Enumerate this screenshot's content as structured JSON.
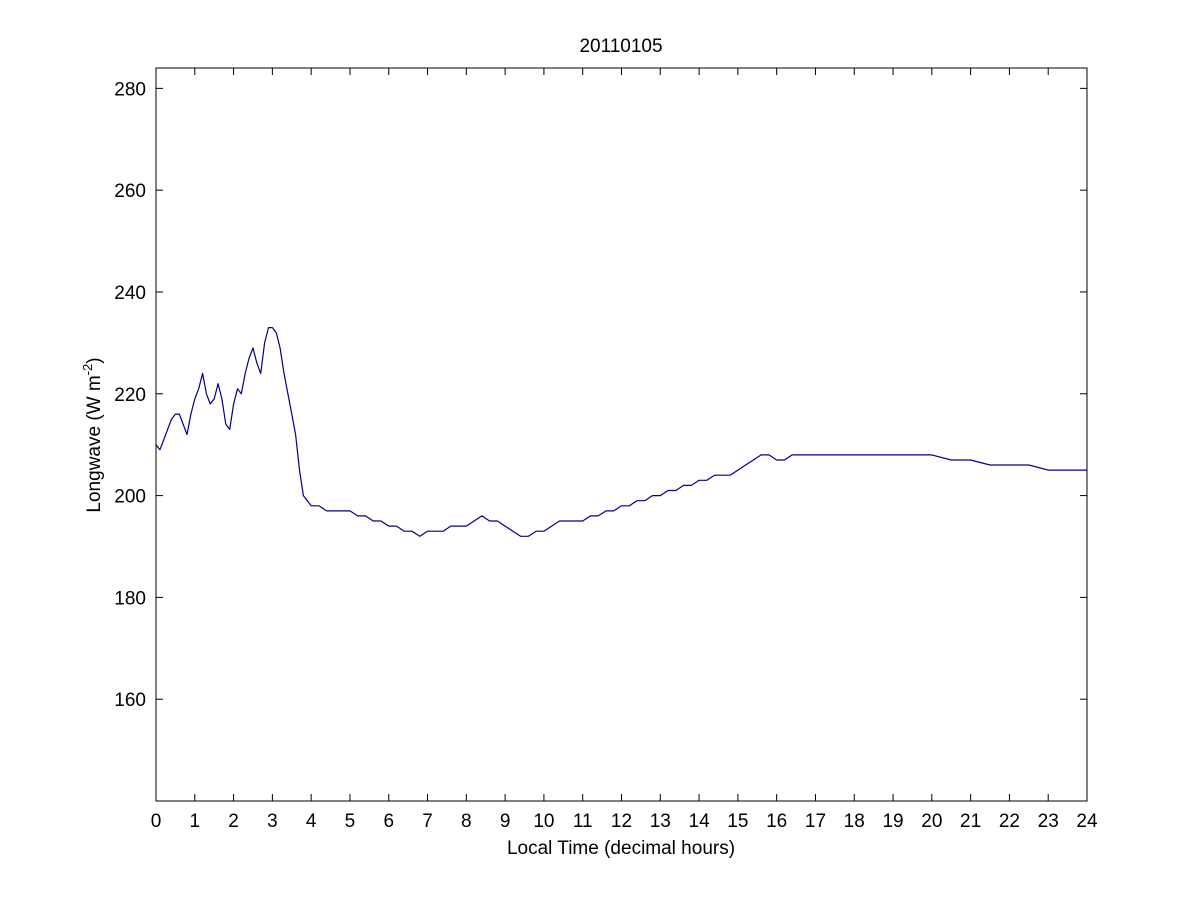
{
  "chart_data": {
    "type": "line",
    "title": "20110105",
    "xlabel": "Local Time (decimal hours)",
    "ylabel_main": "Longwave (W m",
    "ylabel_exponent": "-2",
    "ylabel_close": ")",
    "xlim": [
      0,
      24
    ],
    "ylim": [
      140,
      284
    ],
    "xticks": [
      0,
      1,
      2,
      3,
      4,
      5,
      6,
      7,
      8,
      9,
      10,
      11,
      12,
      13,
      14,
      15,
      16,
      17,
      18,
      19,
      20,
      21,
      22,
      23,
      24
    ],
    "yticks": [
      160,
      180,
      200,
      220,
      240,
      260,
      280
    ],
    "grid": false,
    "line_color": "#00008B",
    "series": [
      {
        "x": [
          0.0,
          0.1,
          0.2,
          0.3,
          0.4,
          0.5,
          0.6,
          0.7,
          0.8,
          0.9,
          1.0,
          1.1,
          1.2,
          1.3,
          1.4,
          1.5,
          1.6,
          1.7,
          1.8,
          1.9,
          2.0,
          2.1,
          2.2,
          2.3,
          2.4,
          2.5,
          2.6,
          2.7,
          2.8,
          2.9,
          3.0,
          3.1,
          3.2,
          3.3,
          3.4,
          3.5,
          3.6,
          3.7,
          3.8,
          3.9,
          4.0,
          4.2,
          4.4,
          4.6,
          4.8,
          5.0,
          5.2,
          5.4,
          5.6,
          5.8,
          6.0,
          6.2,
          6.4,
          6.6,
          6.8,
          7.0,
          7.2,
          7.4,
          7.6,
          7.8,
          8.0,
          8.2,
          8.4,
          8.6,
          8.8,
          9.0,
          9.2,
          9.4,
          9.6,
          9.8,
          10.0,
          10.2,
          10.4,
          10.6,
          10.8,
          11.0,
          11.2,
          11.4,
          11.6,
          11.8,
          12.0,
          12.2,
          12.4,
          12.6,
          12.8,
          13.0,
          13.2,
          13.4,
          13.6,
          13.8,
          14.0,
          14.2,
          14.4,
          14.6,
          14.8,
          15.0,
          15.2,
          15.4,
          15.6,
          15.8,
          16.0,
          16.2,
          16.4,
          16.6,
          16.8,
          17.0,
          17.2,
          17.4,
          17.6,
          17.8,
          18.0,
          18.5,
          19.0,
          19.5,
          20.0,
          20.5,
          21.0,
          21.5,
          22.0,
          22.5,
          23.0,
          23.5,
          24.0
        ],
        "y": [
          210,
          209,
          211,
          213,
          215,
          216,
          216,
          214,
          212,
          216,
          219,
          221,
          224,
          220,
          218,
          219,
          222,
          219,
          214,
          213,
          218,
          221,
          220,
          224,
          227,
          229,
          226,
          224,
          230,
          233,
          233,
          232,
          229,
          224,
          220,
          216,
          212,
          205,
          200,
          199,
          198,
          198,
          197,
          197,
          197,
          197,
          196,
          196,
          195,
          195,
          194,
          194,
          193,
          193,
          192,
          193,
          193,
          193,
          194,
          194,
          194,
          195,
          196,
          195,
          195,
          194,
          193,
          192,
          192,
          193,
          193,
          194,
          195,
          195,
          195,
          195,
          196,
          196,
          197,
          197,
          198,
          198,
          199,
          199,
          200,
          200,
          201,
          201,
          202,
          202,
          203,
          203,
          204,
          204,
          204,
          205,
          206,
          207,
          208,
          208,
          207,
          207,
          208,
          208,
          208,
          208,
          208,
          208,
          208,
          208,
          208,
          208,
          208,
          208,
          208,
          207,
          207,
          206,
          206,
          206,
          205,
          205,
          205
        ]
      }
    ]
  }
}
